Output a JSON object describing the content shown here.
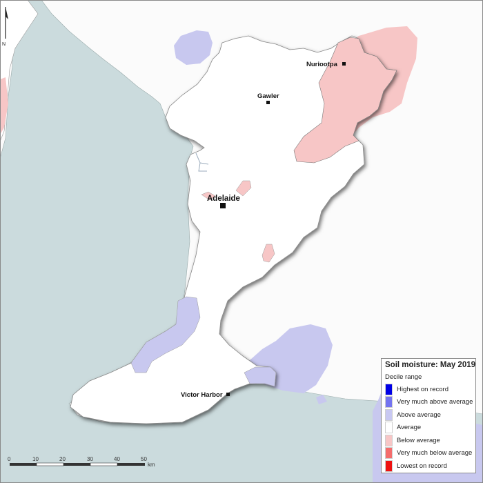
{
  "map": {
    "north_arrow_label": "N",
    "towns": [
      {
        "name": "Nuriootpa"
      },
      {
        "name": "Gawler"
      },
      {
        "name": "Adelaide"
      },
      {
        "name": "Victor Harbor"
      }
    ],
    "scale_bar": {
      "ticks": [
        "0",
        "10",
        "20",
        "30",
        "40",
        "50"
      ],
      "unit": "km"
    },
    "colors": {
      "sea": "#cbdbdd",
      "land": "#ffffff",
      "outline": "#777777",
      "below_average_fill": "#f7c6c6",
      "above_average_fill": "#c8c8ef"
    }
  },
  "legend": {
    "title": "Soil moisture: May 2019",
    "subtitle": "Decile range",
    "items": [
      {
        "label": "Highest on record",
        "color": "#0000e6"
      },
      {
        "label": "Very much above average",
        "color": "#7474f0"
      },
      {
        "label": "Above average",
        "color": "#c8c8f2"
      },
      {
        "label": "Average",
        "color": "#ffffff"
      },
      {
        "label": "Below average",
        "color": "#f7c6c6"
      },
      {
        "label": "Very much below average",
        "color": "#f46c6c"
      },
      {
        "label": "Lowest on record",
        "color": "#ee1111"
      }
    ]
  }
}
